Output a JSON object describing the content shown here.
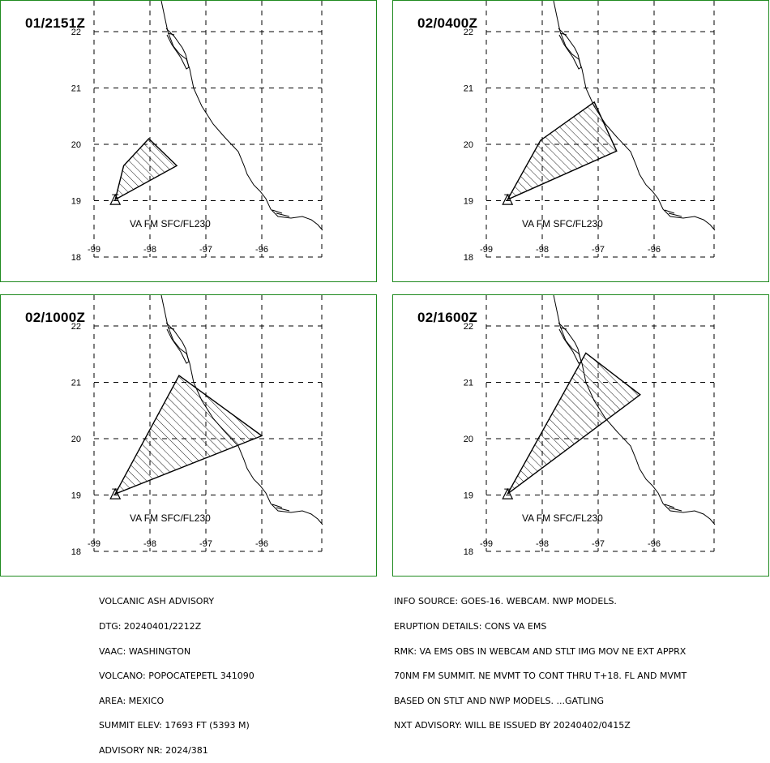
{
  "map": {
    "lon_ticks": [
      -99,
      -98,
      -97,
      -96
    ],
    "lat_ticks": [
      18,
      19,
      20,
      21,
      22
    ],
    "lon_labels": [
      "-99",
      "-98",
      "-97",
      "-96"
    ],
    "lat_labels": [
      "18",
      "19",
      "20",
      "21",
      "22"
    ],
    "volcano": {
      "lon": -98.62,
      "lat": 19.02
    },
    "ash_color": "#000000",
    "border_color": "#1f8a1f"
  },
  "panels": [
    {
      "time": "01/2151Z",
      "label": "VA FM SFC/FL230",
      "polygon": [
        [
          -98.62,
          19.02
        ],
        [
          -98.47,
          19.62
        ],
        [
          -98.02,
          20.1
        ],
        [
          -97.52,
          19.62
        ]
      ]
    },
    {
      "time": "02/0400Z",
      "label": "VA FM SFC/FL230",
      "polygon": [
        [
          -98.62,
          19.02
        ],
        [
          -98.03,
          20.07
        ],
        [
          -97.07,
          20.75
        ],
        [
          -96.67,
          19.88
        ]
      ]
    },
    {
      "time": "02/1000Z",
      "label": "VA FM SFC/FL230",
      "polygon": [
        [
          -98.62,
          19.02
        ],
        [
          -97.48,
          21.12
        ],
        [
          -96.0,
          20.05
        ]
      ]
    },
    {
      "time": "02/1600Z",
      "label": "VA FM SFC/FL230",
      "polygon": [
        [
          -98.62,
          19.02
        ],
        [
          -97.22,
          21.52
        ],
        [
          -96.25,
          20.78
        ]
      ]
    }
  ],
  "advisory_left": [
    "VOLCANIC ASH ADVISORY",
    "DTG: 20240401/2212Z",
    "VAAC: WASHINGTON",
    "VOLCANO: POPOCATEPETL 341090",
    "AREA: MEXICO",
    "SUMMIT ELEV: 17693 FT (5393 M)",
    "ADVISORY NR: 2024/381"
  ],
  "advisory_right": [
    "INFO SOURCE: GOES-16. WEBCAM. NWP MODELS.",
    "ERUPTION DETAILS: CONS VA EMS",
    "RMK: VA EMS OBS IN WEBCAM AND STLT IMG MOV NE EXT APPRX",
    "70NM FM SUMMIT. NE MVMT TO CONT THRU T+18. FL AND MVMT",
    "BASED ON STLT AND NWP MODELS. ...GATLING",
    "NXT ADVISORY: WILL BE ISSUED BY 20240402/0415Z"
  ]
}
